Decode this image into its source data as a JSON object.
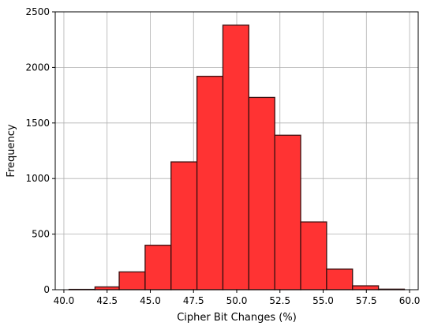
{
  "chart_data": {
    "type": "bar",
    "title": "",
    "xlabel": "Cipher Bit Changes (%)",
    "ylabel": "Frequency",
    "xlim": [
      39.5,
      60.5
    ],
    "ylim": [
      0,
      2500
    ],
    "grid": true,
    "legend": "none",
    "bar_color": "#ff3333",
    "edge_color": "#3a1010",
    "x_ticks": [
      "40.0",
      "42.5",
      "45.0",
      "47.5",
      "50.0",
      "52.5",
      "55.0",
      "57.5",
      "60.0"
    ],
    "y_ticks": [
      "0",
      "500",
      "1000",
      "1500",
      "2000",
      "2500"
    ],
    "bins": [
      {
        "from": 40.3,
        "to": 41.8,
        "value": 3
      },
      {
        "from": 41.8,
        "to": 43.2,
        "value": 25
      },
      {
        "from": 43.2,
        "to": 44.7,
        "value": 160
      },
      {
        "from": 44.7,
        "to": 46.2,
        "value": 400
      },
      {
        "from": 46.2,
        "to": 47.7,
        "value": 1150
      },
      {
        "from": 47.7,
        "to": 49.2,
        "value": 1920
      },
      {
        "from": 49.2,
        "to": 50.7,
        "value": 2380
      },
      {
        "from": 50.7,
        "to": 52.2,
        "value": 1730
      },
      {
        "from": 52.2,
        "to": 53.7,
        "value": 1390
      },
      {
        "from": 53.7,
        "to": 55.2,
        "value": 610
      },
      {
        "from": 55.2,
        "to": 56.7,
        "value": 185
      },
      {
        "from": 56.7,
        "to": 58.2,
        "value": 35
      },
      {
        "from": 58.2,
        "to": 59.7,
        "value": 5
      }
    ]
  }
}
